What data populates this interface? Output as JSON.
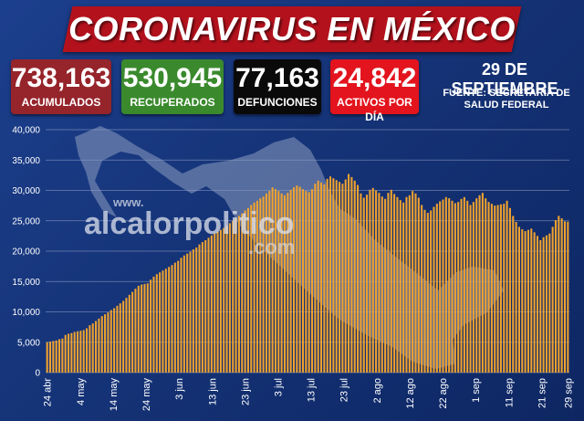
{
  "header": {
    "title": "CORONAVIRUS EN MÉXICO",
    "date": "29 DE SEPTIEMBRE",
    "source": "FUENTE: SECRETARÍA DE SALUD FEDERAL"
  },
  "stats": [
    {
      "value": "738,163",
      "label": "ACUMULADOS",
      "color": "#96242b"
    },
    {
      "value": "530,945",
      "label": "RECUPERADOS",
      "color": "#3a8a2d"
    },
    {
      "value": "77,163",
      "label": "DEFUNCIONES",
      "color": "#0a0a0a"
    },
    {
      "value": "24,842",
      "label": "ACTIVOS POR DÍA",
      "color": "#e3141d"
    }
  ],
  "watermark": {
    "text": "alcalorpolitico",
    "www": "www.",
    "suffix": ".com"
  },
  "colors": {
    "bar": "#f0a22e",
    "background": "#153377",
    "map": "#7d8fb4"
  },
  "chart_data": {
    "type": "bar",
    "title": "",
    "xlabel": "",
    "ylabel": "",
    "ylim": [
      0,
      40000
    ],
    "y_ticks": [
      "0",
      "5,000",
      "10,000",
      "15,000",
      "20,000",
      "25,000",
      "30,000",
      "35,000",
      "40,000"
    ],
    "x_tick_labels": [
      "24 abr",
      "4 may",
      "14 may",
      "24 may",
      "3 jun",
      "13 jun",
      "23 jun",
      "3 jul",
      "13 jul",
      "23 jul",
      "2 ago",
      "12 ago",
      "22 ago",
      "1 sep",
      "11 sep",
      "21 sep",
      "29 sep"
    ],
    "x_start": "2020-04-24",
    "x_end": "2020-09-29",
    "grid": true,
    "series": [
      {
        "values": [
          5000,
          5100,
          5200,
          5300,
          5500,
          5600,
          6200,
          6400,
          6500,
          6700,
          6800,
          6900,
          7000,
          7300,
          7800,
          8100,
          8500,
          8900,
          9300,
          9600,
          9900,
          10300,
          10600,
          11000,
          11400,
          11800,
          12300,
          12800,
          13300,
          13800,
          14300,
          14500,
          14600,
          14700,
          15300,
          15800,
          16200,
          16500,
          16800,
          17100,
          17400,
          17700,
          18100,
          18400,
          18900,
          19300,
          19600,
          19900,
          20300,
          20600,
          21100,
          21500,
          21800,
          22200,
          22600,
          22900,
          23200,
          23500,
          23800,
          24200,
          24600,
          25000,
          25400,
          25800,
          26200,
          26700,
          27100,
          27600,
          28000,
          28300,
          28700,
          29000,
          29500,
          29900,
          30500,
          30200,
          29900,
          29500,
          29200,
          29600,
          30100,
          30500,
          30800,
          30600,
          30200,
          29900,
          29700,
          30200,
          31100,
          31600,
          31300,
          31000,
          31900,
          32300,
          32000,
          31700,
          31400,
          31100,
          31800,
          32700,
          32200,
          31600,
          30900,
          29500,
          28800,
          29300,
          30100,
          30400,
          30000,
          29600,
          29000,
          28600,
          29600,
          30100,
          29400,
          28900,
          28400,
          28000,
          28900,
          29200,
          29900,
          29500,
          28800,
          27600,
          26800,
          26300,
          26700,
          27300,
          27800,
          28200,
          28500,
          28900,
          28700,
          28300,
          27900,
          28100,
          28600,
          28900,
          28300,
          27600,
          28100,
          28700,
          29200,
          29600,
          28700,
          28100,
          27800,
          27500,
          27600,
          27700,
          27800,
          28300,
          27100,
          25800,
          24800,
          24000,
          23600,
          23300,
          23500,
          23700,
          23100,
          22500,
          21800,
          22300,
          22600,
          22900,
          24000,
          25100,
          25800,
          25400,
          24900,
          24842
        ]
      }
    ]
  }
}
